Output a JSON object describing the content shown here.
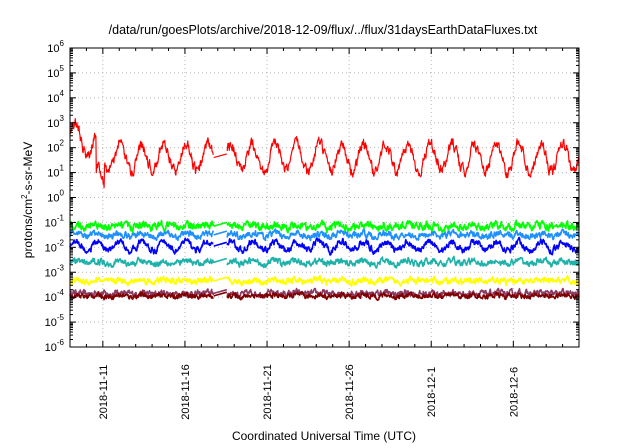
{
  "chart_data": {
    "type": "line",
    "title": "/data/run/goesPlots/archive/2018-12-09/flux/../flux/31daysEarthDataFluxes.txt",
    "xlabel": "Coordinated Universal Time (UTC)",
    "ylabel": "protons/cm2-s-sr-MeV",
    "ylabel_parts": [
      "protons/cm",
      "2",
      "-s-sr-MeV"
    ],
    "yscale": "log",
    "ylim_exp": [
      -6,
      6
    ],
    "y_tick_base": "10",
    "y_tick_exponents": [
      "-6",
      "-5",
      "-4",
      "-3",
      "-2",
      "-1",
      "0",
      "1",
      "2",
      "3",
      "4",
      "5",
      "6"
    ],
    "xlim_days": [
      0,
      31
    ],
    "x_tick_labels": [
      "2018-11-11",
      "2018-11-16",
      "2018-11-21",
      "2018-11-26",
      "2018-12-1",
      "2018-12-6"
    ],
    "x_tick_days": [
      2,
      7,
      12,
      17,
      22,
      27
    ],
    "grid": true,
    "data_gap_days": [
      8.75,
      9.55
    ],
    "series": [
      {
        "color": "#ff0000",
        "log_base": 1.6,
        "log_amp": 0.55,
        "log_noise": 0.18
      },
      {
        "color": "#00ff00",
        "log_base": -1.15,
        "log_amp": 0.05,
        "log_noise": 0.12
      },
      {
        "color": "#1e90ff",
        "log_base": -1.5,
        "log_amp": 0.06,
        "log_noise": 0.1
      },
      {
        "color": "#0000ff",
        "log_base": -1.95,
        "log_amp": 0.18,
        "log_noise": 0.1
      },
      {
        "color": "#20b2aa",
        "log_base": -2.6,
        "log_amp": 0.06,
        "log_noise": 0.1
      },
      {
        "color": "#ffff00",
        "log_base": -3.35,
        "log_amp": 0.04,
        "log_noise": 0.1
      },
      {
        "color": "#800000",
        "log_base": -3.95,
        "log_amp": 0.03,
        "log_noise": 0.08
      },
      {
        "color": "#8b3a62",
        "log_base": -3.85,
        "log_amp": 0.03,
        "log_noise": 0.1
      }
    ]
  }
}
